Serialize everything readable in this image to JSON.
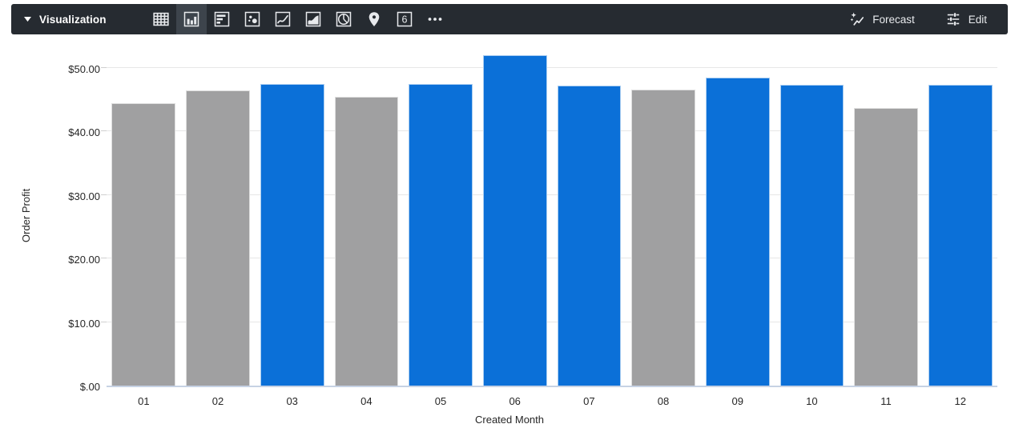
{
  "toolbar": {
    "title": "Visualization",
    "forecast_label": "Forecast",
    "edit_label": "Edit",
    "single_value_glyph": "6",
    "selected_viz": "column",
    "colors": {
      "bg": "#262b31",
      "selected_bg": "#3d444c",
      "icon": "#e8eaed"
    }
  },
  "chart_data": {
    "type": "bar",
    "title": "",
    "xlabel": "Created Month",
    "ylabel": "Order Profit",
    "categories": [
      "01",
      "02",
      "03",
      "04",
      "05",
      "06",
      "07",
      "08",
      "09",
      "10",
      "11",
      "12"
    ],
    "values": [
      44.4,
      46.4,
      47.5,
      45.4,
      47.5,
      52.0,
      47.2,
      46.6,
      48.5,
      47.3,
      43.7,
      47.3
    ],
    "bar_colors": [
      "gray",
      "gray",
      "blue",
      "gray",
      "blue",
      "blue",
      "blue",
      "gray",
      "blue",
      "blue",
      "gray",
      "blue"
    ],
    "palette": {
      "blue": "#0b70d8",
      "gray": "#a0a0a1"
    },
    "y_ticks": [
      {
        "label": "$.00",
        "value": 0
      },
      {
        "label": "$10.00",
        "value": 10
      },
      {
        "label": "$20.00",
        "value": 20
      },
      {
        "label": "$30.00",
        "value": 30
      },
      {
        "label": "$40.00",
        "value": 40
      },
      {
        "label": "$50.00",
        "value": 50
      }
    ],
    "ylim": [
      0,
      54
    ],
    "grid": true,
    "legend": "none",
    "axis_line_color": "#c6d2e4",
    "gridline_color": "#e7e7e7"
  }
}
